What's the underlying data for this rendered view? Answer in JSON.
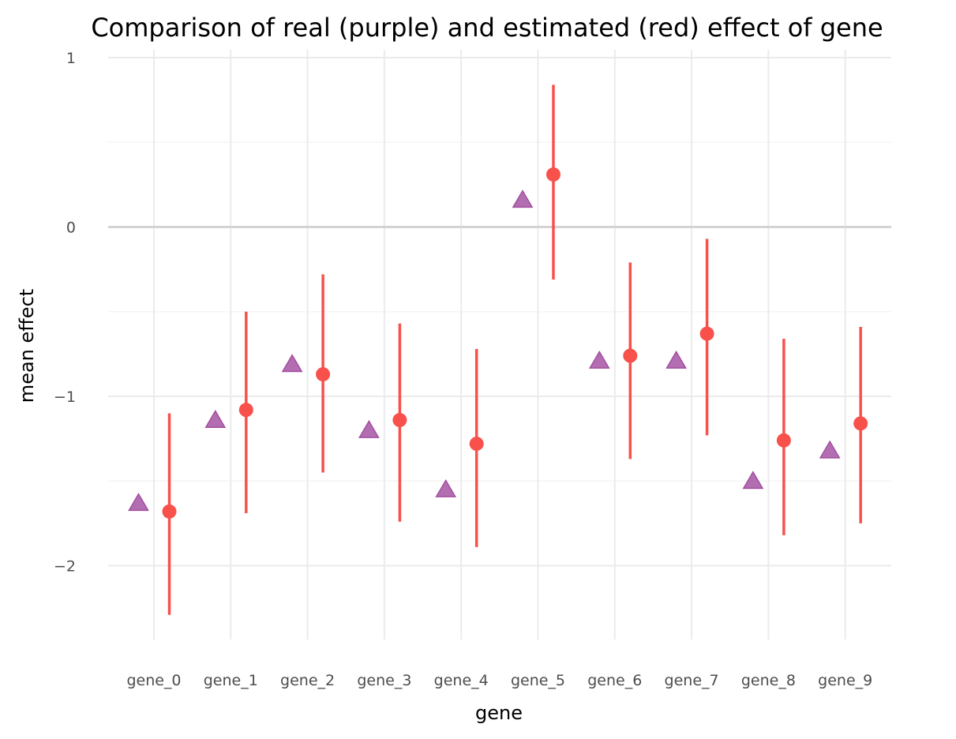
{
  "chart_data": {
    "type": "scatter",
    "title": "Comparison of real (purple) and estimated (red) effect of gene",
    "xlabel": "gene",
    "ylabel": "mean effect",
    "categories": [
      "gene_0",
      "gene_1",
      "gene_2",
      "gene_3",
      "gene_4",
      "gene_5",
      "gene_6",
      "gene_7",
      "gene_8",
      "gene_9"
    ],
    "ylim": [
      -2.45,
      1.0
    ],
    "yticks": [
      1,
      0,
      -1,
      -2
    ],
    "ytick_labels": [
      "1",
      "0",
      "−1",
      "−2"
    ],
    "grid": true,
    "series": [
      {
        "role": "real",
        "marker": "triangle",
        "color": "#a24ea0",
        "values": [
          -1.63,
          -1.14,
          -0.81,
          -1.2,
          -1.55,
          0.16,
          -0.79,
          -0.79,
          -1.5,
          -1.32
        ]
      },
      {
        "role": "estimated",
        "marker": "circle",
        "color": "#f8514c",
        "values": [
          -1.68,
          -1.08,
          -0.87,
          -1.14,
          -1.28,
          0.31,
          -0.76,
          -0.63,
          -1.26,
          -1.16
        ],
        "lower": [
          -2.29,
          -1.69,
          -1.45,
          -1.74,
          -1.89,
          -0.31,
          -1.37,
          -1.23,
          -1.82,
          -1.75
        ],
        "upper": [
          -1.1,
          -0.5,
          -0.28,
          -0.57,
          -0.72,
          0.84,
          -0.21,
          -0.07,
          -0.66,
          -0.59
        ]
      }
    ]
  }
}
